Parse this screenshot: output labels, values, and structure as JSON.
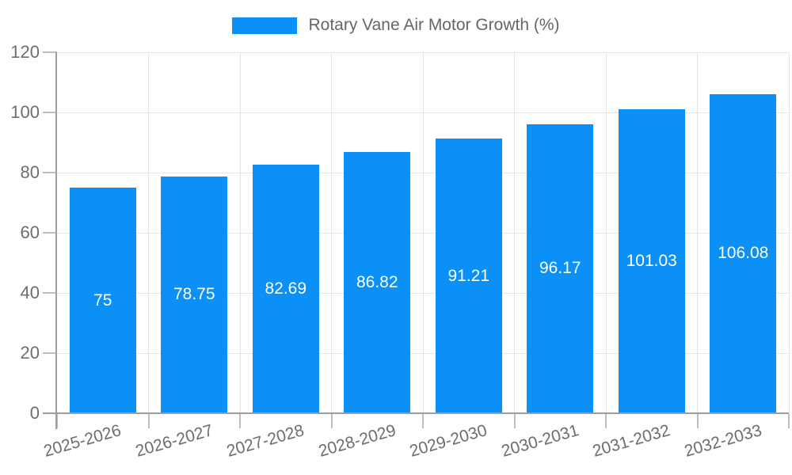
{
  "legend": {
    "label": "Rotary Vane Air Motor Growth (%)"
  },
  "chart_data": {
    "type": "bar",
    "title": "Rotary Vane Air Motor Growth (%)",
    "categories": [
      "2025-2026",
      "2026-2027",
      "2027-2028",
      "2028-2029",
      "2029-2030",
      "2030-2031",
      "2031-2032",
      "2032-2033"
    ],
    "values": [
      75,
      78.75,
      82.69,
      86.82,
      91.21,
      96.17,
      101.03,
      106.08
    ],
    "value_labels": [
      "75",
      "78.75",
      "82.69",
      "86.82",
      "91.21",
      "96.17",
      "101.03",
      "106.08"
    ],
    "xlabel": "",
    "ylabel": "",
    "ylim": [
      0,
      120
    ],
    "yticks": [
      0,
      20,
      40,
      60,
      80,
      100,
      120
    ],
    "grid": true,
    "legend_position": "top",
    "bar_color": "#0b90f8",
    "bar_label_color": "#ffffff",
    "grid_color": "#e6e6e6",
    "axis_color": "#9e9e9e",
    "tick_color": "#bdbdbd",
    "tick_label_color": "#6e6e6e",
    "legend_text_color": "#666666",
    "background_color": "#ffffff"
  }
}
